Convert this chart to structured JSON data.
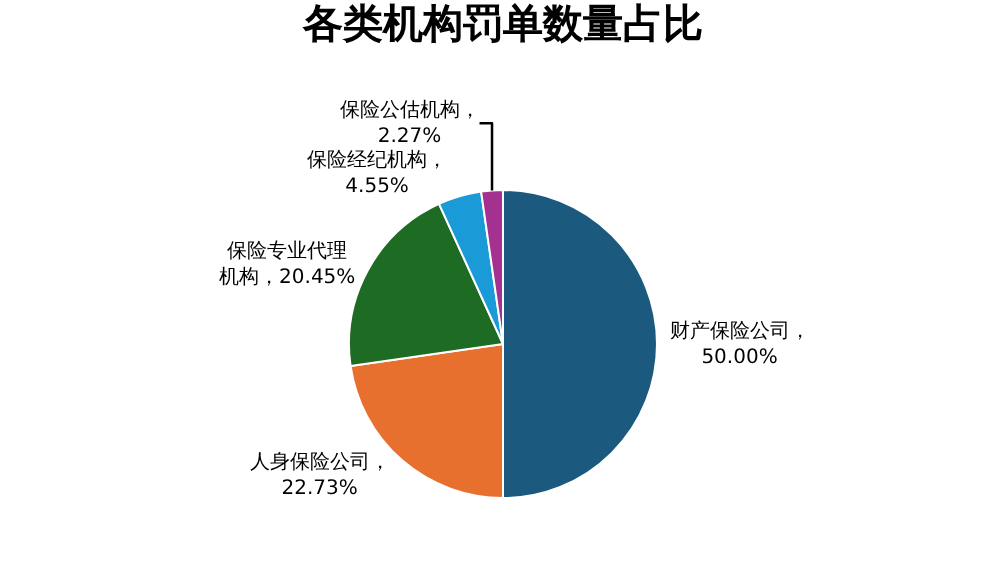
{
  "chart_data": {
    "type": "pie",
    "title": "各类机构罚单数量占比",
    "categories": [
      "财产保险公司",
      "人身保险公司",
      "保险专业代理机构",
      "保险经纪机构",
      "保险公估机构"
    ],
    "values": [
      50.0,
      22.73,
      20.45,
      4.55,
      2.27
    ],
    "colors": [
      "#1b5a7e",
      "#e8702f",
      "#1e6b24",
      "#1a9bd7",
      "#a4308f"
    ],
    "value_labels": [
      "，50.00%",
      "，22.73%",
      "，20.45%",
      "，4.55%",
      "，2.27%"
    ],
    "legend": false
  }
}
